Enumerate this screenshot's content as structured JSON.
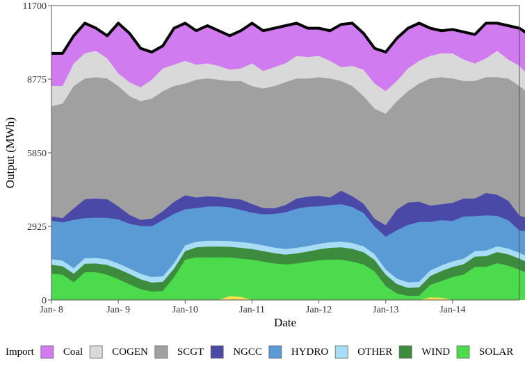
{
  "chart_data": {
    "type": "area",
    "title": "",
    "xlabel": "Date",
    "ylabel": "Output (MWh)",
    "ylim": [
      0,
      11700
    ],
    "yticks": [
      "0",
      "2925",
      "5850",
      "8775",
      "11700"
    ],
    "xlim": [
      "Jan- 8",
      "Jan- 15"
    ],
    "xtick_labels": [
      "Jan- 8",
      "Jan- 9",
      "Jan-10",
      "Jan-11",
      "Jan-12",
      "Jan-13",
      "Jan-14"
    ],
    "grid": false,
    "legend_position": "bottom",
    "hours_per_step": 4,
    "total_line_color": "#000000",
    "series": [
      {
        "name": "SOLAR",
        "color": "#ffe14d",
        "values": [
          0,
          0,
          0,
          0,
          0,
          0,
          0,
          0,
          0,
          0,
          0,
          0,
          0,
          0,
          0,
          0,
          150,
          120,
          0,
          0,
          0,
          0,
          0,
          0,
          0,
          0,
          0,
          0,
          0,
          0,
          0,
          0,
          0,
          0,
          100,
          90,
          0,
          0,
          0,
          0,
          0,
          0,
          0,
          0,
          0,
          0,
          0,
          0,
          0,
          0,
          0,
          0,
          0,
          0
        ]
      },
      {
        "name": "WIND",
        "color": "#4cdb4c",
        "values": [
          1050,
          1000,
          700,
          1100,
          1100,
          1000,
          820,
          620,
          430,
          330,
          360,
          900,
          1600,
          1690,
          1690,
          1690,
          1690,
          1640,
          1600,
          1520,
          1450,
          1410,
          1450,
          1510,
          1570,
          1600,
          1600,
          1520,
          1410,
          1130,
          550,
          260,
          160,
          170,
          600,
          750,
          910,
          1010,
          1310,
          1310,
          1460,
          1360,
          1200,
          1010,
          650,
          300,
          200,
          160,
          170,
          180,
          200,
          210,
          180,
          170
        ]
      },
      {
        "name": "OTHER",
        "color": "#3d8c3d",
        "values": [
          1400,
          1340,
          1040,
          1440,
          1450,
          1390,
          1230,
          1030,
          820,
          690,
          720,
          1240,
          1940,
          2090,
          2120,
          2120,
          2110,
          2070,
          2020,
          1940,
          1860,
          1800,
          1850,
          1920,
          2010,
          2070,
          2090,
          2030,
          1900,
          1590,
          1000,
          630,
          480,
          500,
          950,
          1150,
          1310,
          1420,
          1720,
          1740,
          1900,
          1810,
          1640,
          1440,
          1070,
          680,
          550,
          490,
          490,
          510,
          530,
          540,
          510,
          500
        ]
      },
      {
        "name": "HYDRO",
        "color": "#a9ddf5",
        "values": [
          1620,
          1560,
          1260,
          1660,
          1670,
          1610,
          1450,
          1250,
          1040,
          910,
          940,
          1460,
          2170,
          2310,
          2350,
          2350,
          2340,
          2300,
          2250,
          2170,
          2080,
          2020,
          2070,
          2140,
          2230,
          2290,
          2320,
          2260,
          2130,
          1820,
          1210,
          850,
          700,
          720,
          1170,
          1370,
          1530,
          1640,
          1940,
          1960,
          2130,
          2040,
          1870,
          1670,
          1290,
          900,
          770,
          710,
          710,
          730,
          750,
          760,
          730,
          720
        ]
      },
      {
        "name": "NGCC",
        "color": "#5b9bd5",
        "values": [
          3150,
          3080,
          3180,
          3250,
          3270,
          3260,
          3200,
          3030,
          2940,
          2930,
          3170,
          3420,
          3600,
          3650,
          3710,
          3720,
          3680,
          3580,
          3470,
          3400,
          3420,
          3480,
          3620,
          3700,
          3720,
          3770,
          3800,
          3690,
          3460,
          2920,
          2510,
          2770,
          2980,
          3100,
          3100,
          3170,
          3140,
          3320,
          3330,
          3360,
          3340,
          3170,
          2760,
          2720,
          2570,
          2510,
          2510,
          2520,
          2520,
          2550,
          2560,
          2560,
          2570,
          2580
        ]
      },
      {
        "name": "SCGT",
        "color": "#4a49a8",
        "values": [
          3320,
          3250,
          3640,
          4000,
          4030,
          4000,
          3720,
          3380,
          3180,
          3230,
          3530,
          3900,
          4160,
          4070,
          4120,
          4090,
          4030,
          3990,
          3810,
          3650,
          3640,
          3770,
          4030,
          4100,
          4140,
          4070,
          4340,
          4120,
          3830,
          3220,
          2970,
          3590,
          3870,
          3900,
          3750,
          3800,
          3860,
          4030,
          4030,
          4250,
          4180,
          3940,
          3350,
          3220,
          2930,
          2860,
          2980,
          3150,
          3320,
          3450,
          3480,
          3460,
          3380,
          3230
        ]
      },
      {
        "name": "COGEN",
        "color": "#a0a0a0",
        "values": [
          7700,
          7800,
          8500,
          8800,
          8850,
          8800,
          8500,
          8100,
          7900,
          8000,
          8300,
          8500,
          8600,
          8750,
          8800,
          8750,
          8700,
          8700,
          8500,
          8400,
          8500,
          8650,
          8800,
          8800,
          8850,
          8800,
          8700,
          8500,
          8100,
          7600,
          7400,
          7900,
          8300,
          8600,
          8800,
          8850,
          8800,
          8700,
          8700,
          8850,
          8850,
          8800,
          8500,
          8150,
          7850,
          7600,
          7500,
          7700,
          7800,
          7950,
          8000,
          7900,
          7800,
          7750
        ]
      },
      {
        "name": "Coal",
        "color": "#d9d9d9",
        "values": [
          8500,
          8500,
          9400,
          9800,
          9900,
          9600,
          9000,
          8650,
          8450,
          8750,
          9200,
          9350,
          9500,
          9350,
          9400,
          9300,
          9150,
          9200,
          9400,
          9100,
          9250,
          9400,
          9700,
          9650,
          9700,
          9500,
          9250,
          9300,
          9150,
          8600,
          8300,
          8700,
          9200,
          9500,
          9700,
          9800,
          9800,
          9550,
          9400,
          9600,
          9900,
          9550,
          9300,
          8850,
          8400,
          8450,
          8650,
          8900,
          9200,
          9350,
          9450,
          9400,
          9100,
          8800
        ]
      },
      {
        "name": "Import",
        "color": "#d07bf0",
        "values": [
          9800,
          9800,
          10500,
          11000,
          10800,
          10500,
          11000,
          10600,
          10000,
          9850,
          10100,
          10800,
          11000,
          10700,
          10900,
          10700,
          10500,
          10700,
          11000,
          10700,
          10800,
          10900,
          11000,
          10800,
          10800,
          10700,
          10950,
          11000,
          10600,
          10000,
          9850,
          10400,
          10800,
          11000,
          10800,
          10700,
          10750,
          10650,
          10550,
          11000,
          11000,
          10900,
          10800,
          10500,
          10300,
          10100,
          10300,
          10600,
          11000,
          10900,
          10500,
          10900,
          11000,
          10300
        ]
      }
    ]
  }
}
